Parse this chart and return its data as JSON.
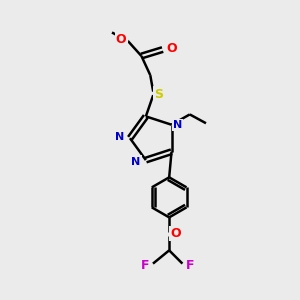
{
  "bg_color": "#ebebeb",
  "bond_color": "#000000",
  "N_color": "#0000cc",
  "O_color": "#ff0000",
  "S_color": "#cccc00",
  "F_color": "#cc00cc",
  "lw": 1.8,
  "fig_w": 3.0,
  "fig_h": 3.0,
  "dpi": 100,
  "xlim": [
    0,
    10
  ],
  "ylim": [
    0,
    10
  ]
}
